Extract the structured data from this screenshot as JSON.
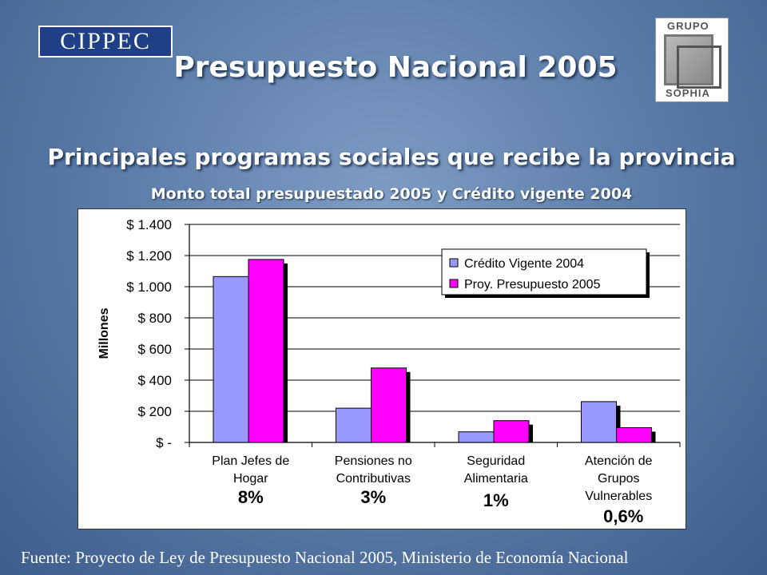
{
  "logos": {
    "left": "CIPPEC",
    "right_top": "GRUPO",
    "right_bottom": "SOPHIA"
  },
  "header": {
    "title": "Presupuesto Nacional 2005",
    "subtitle": "Principales programas sociales que recibe la provincia",
    "subtitle2": "Monto total presupuestado 2005 y Crédito vigente 2004"
  },
  "footer": {
    "source": "Fuente: Proyecto de Ley de Presupuesto Nacional 2005, Ministerio de Economía Nacional"
  },
  "colors": {
    "series1": "#9999ff",
    "series2": "#ff00ff"
  },
  "chart_data": {
    "type": "bar",
    "categories": [
      [
        "Plan Jefes de",
        "Hogar"
      ],
      [
        "Pensiones no",
        "Contributivas"
      ],
      [
        "Seguridad",
        "Alimentaria"
      ],
      [
        "Atención de",
        "Grupos",
        "Vulnerables"
      ]
    ],
    "category_percent": [
      "8%",
      "3%",
      "1%",
      "0,6%"
    ],
    "series": [
      {
        "name": "Crédito Vigente 2004",
        "values": [
          1065,
          220,
          68,
          262
        ]
      },
      {
        "name": "Proy. Presupuesto 2005",
        "values": [
          1175,
          478,
          140,
          95
        ]
      }
    ],
    "ylabel": "Millones",
    "ylim": [
      0,
      1400
    ],
    "yticks": [
      0,
      200,
      400,
      600,
      800,
      1000,
      1200,
      1400
    ],
    "ytick_labels": [
      "$ -",
      "$ 200",
      "$ 400",
      "$ 600",
      "$ 800",
      "$ 1.000",
      "$ 1.200",
      "$ 1.400"
    ],
    "grid": true,
    "legend_position": "top-right"
  }
}
